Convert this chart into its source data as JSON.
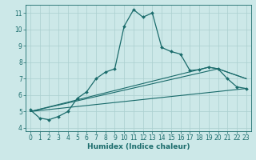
{
  "xlabel": "Humidex (Indice chaleur)",
  "ylabel": "",
  "xlim": [
    -0.5,
    23.5
  ],
  "ylim": [
    3.8,
    11.5
  ],
  "yticks": [
    4,
    5,
    6,
    7,
    8,
    9,
    10,
    11
  ],
  "xticks": [
    0,
    1,
    2,
    3,
    4,
    5,
    6,
    7,
    8,
    9,
    10,
    11,
    12,
    13,
    14,
    15,
    16,
    17,
    18,
    19,
    20,
    21,
    22,
    23
  ],
  "bg_color": "#cce8e8",
  "grid_color": "#aacfcf",
  "line_color": "#1a6b6b",
  "lines": [
    {
      "x": [
        0,
        1,
        2,
        3,
        4,
        5,
        6,
        7,
        8,
        9,
        10,
        11,
        12,
        13,
        14,
        15,
        16,
        17,
        18,
        19,
        20,
        21,
        22,
        23
      ],
      "y": [
        5.1,
        4.6,
        4.5,
        4.7,
        5.0,
        5.8,
        6.2,
        7.0,
        7.4,
        7.6,
        10.2,
        11.2,
        10.75,
        11.0,
        8.9,
        8.65,
        8.5,
        7.5,
        7.55,
        7.7,
        7.6,
        7.0,
        6.5,
        6.4
      ],
      "marker": "D",
      "markersize": 2.0,
      "linewidth": 0.9
    },
    {
      "x": [
        0,
        23
      ],
      "y": [
        5.0,
        6.4
      ],
      "marker": null,
      "linewidth": 0.8
    },
    {
      "x": [
        0,
        20,
        23
      ],
      "y": [
        5.0,
        7.6,
        7.0
      ],
      "marker": null,
      "linewidth": 0.8
    },
    {
      "x": [
        0,
        19,
        20,
        23
      ],
      "y": [
        5.0,
        7.7,
        7.6,
        7.0
      ],
      "marker": null,
      "linewidth": 0.8
    }
  ]
}
